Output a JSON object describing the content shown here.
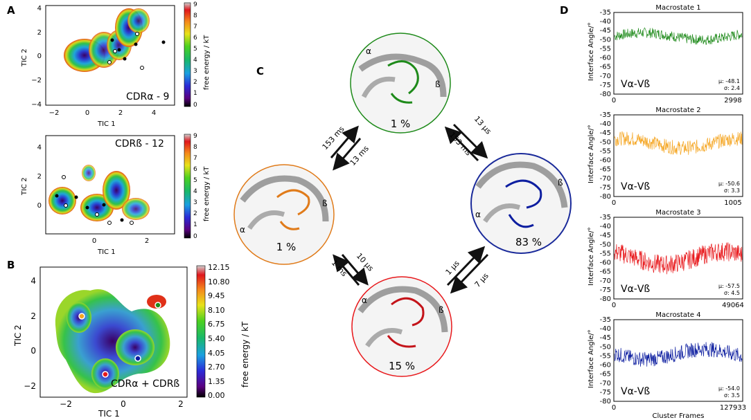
{
  "panel_letters": {
    "a": "A",
    "b": "B",
    "c": "C",
    "d": "D"
  },
  "colors": {
    "macro1": "#1e8a1a",
    "macro2": "#f5a623",
    "macro3": "#e8191c",
    "macro4": "#0d1ea0",
    "arrow": "#111111"
  },
  "panel_a_top": {
    "label": "CDRα - 9",
    "xlabel": "TIC 1",
    "ylabel": "TIC 2",
    "xticks": [
      "−2",
      "0",
      "2",
      "4"
    ],
    "yticks": [
      "4",
      "2",
      "0",
      "−2",
      "−4"
    ],
    "colorbar_label": "free energy / kT",
    "colorbar_ticks": [
      "9",
      "8",
      "7",
      "6",
      "5",
      "4",
      "3",
      "2",
      "1",
      "0"
    ]
  },
  "panel_a_bottom": {
    "label": "CDRß - 12",
    "xlabel": "TIC 1",
    "ylabel": "TIC 2",
    "xticks": [
      "0",
      "2"
    ],
    "yticks": [
      "4",
      "2",
      "0"
    ],
    "colorbar_label": "free energy / kT",
    "colorbar_ticks": [
      "9",
      "8",
      "7",
      "6",
      "5",
      "4",
      "3",
      "2",
      "1",
      "0"
    ]
  },
  "panel_b": {
    "label": "CDRα + CDRß",
    "xlabel": "TIC 1",
    "ylabel": "TIC 2",
    "xticks": [
      "−2",
      "0",
      "2"
    ],
    "yticks": [
      "4",
      "2",
      "0",
      "−2"
    ],
    "colorbar_label": "free energy / kT",
    "colorbar_ticks": [
      "12.15",
      "10.80",
      "9.45",
      "8.10",
      "6.75",
      "5.40",
      "4.05",
      "2.70",
      "1.35",
      "0.00"
    ]
  },
  "panel_c": {
    "alpha": "α",
    "beta": "ß",
    "states": [
      {
        "id": "m1",
        "population": "1 %"
      },
      {
        "id": "m2",
        "population": "1 %"
      },
      {
        "id": "m3",
        "population": "15 %"
      },
      {
        "id": "m4",
        "population": "83 %"
      }
    ],
    "rates": {
      "m2_to_m1": "153 ms",
      "m1_to_m2": "13 ms",
      "m1_to_m4": "13 µs",
      "m4_to_m1": "153 ms",
      "m2_to_m3": "10 µs",
      "m3_to_m2": "1 ms",
      "m3_to_m4": "1 µs",
      "m4_to_m3": "7 µs"
    }
  },
  "panel_d": {
    "ylabel": "Interface Angle/°",
    "xlabel": "Cluster Frames",
    "series_label": "Vα-Vß",
    "yticks": [
      "-35",
      "-40",
      "-45",
      "-50",
      "-55",
      "-60",
      "-65",
      "-70",
      "-75",
      "-80"
    ],
    "plots": [
      {
        "title": "Macrostate 1",
        "x_start": "0",
        "x_end": "2998",
        "mu": "µ: -48.1",
        "sigma": "σ: 2.4"
      },
      {
        "title": "Macrostate 2",
        "x_start": "0",
        "x_end": "1005",
        "mu": "µ: -50.6",
        "sigma": "σ: 3.3"
      },
      {
        "title": "Macrostate 3",
        "x_start": "0",
        "x_end": "49064",
        "mu": "µ: -57.5",
        "sigma": "σ: 4.5"
      },
      {
        "title": "Macrostate 4",
        "x_start": "0",
        "x_end": "127933",
        "mu": "µ: -54.0",
        "sigma": "σ: 3.5"
      }
    ]
  },
  "chart_data": [
    {
      "type": "line",
      "title": "Macrostate 1",
      "ylabel": "Interface Angle/°",
      "xlim": [
        0,
        2998
      ],
      "ylim": [
        -80,
        -35
      ],
      "mean": -48.1,
      "std": 2.4
    },
    {
      "type": "line",
      "title": "Macrostate 2",
      "ylabel": "Interface Angle/°",
      "xlim": [
        0,
        1005
      ],
      "ylim": [
        -80,
        -35
      ],
      "mean": -50.6,
      "std": 3.3
    },
    {
      "type": "line",
      "title": "Macrostate 3",
      "ylabel": "Interface Angle/°",
      "xlim": [
        0,
        49064
      ],
      "ylim": [
        -80,
        -35
      ],
      "mean": -57.5,
      "std": 4.5
    },
    {
      "type": "line",
      "title": "Macrostate 4",
      "ylabel": "Interface Angle/°",
      "xlabel": "Cluster Frames",
      "xlim": [
        0,
        127933
      ],
      "ylim": [
        -80,
        -35
      ],
      "mean": -54.0,
      "std": 3.5
    }
  ]
}
